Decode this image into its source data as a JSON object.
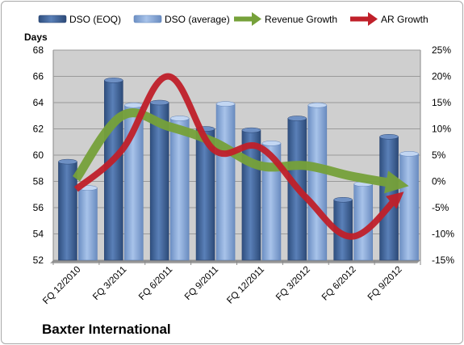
{
  "company_name": "Baxter International",
  "chart_data": {
    "type": "bar",
    "categories": [
      "FQ 12/2010",
      "FQ 3/2011",
      "FQ 6/2011",
      "FQ 9/2011",
      "FQ 12/2011",
      "FQ 3/2012",
      "FQ 6/2012",
      "FQ 9/2012"
    ],
    "y_left_label": "Days",
    "y_left_range": [
      52,
      68
    ],
    "y_left_ticks": [
      52,
      54,
      56,
      58,
      60,
      62,
      64,
      66,
      68
    ],
    "y_right_range": [
      -15,
      25
    ],
    "y_right_ticks": [
      "-15%",
      "-10%",
      "-5%",
      "0%",
      "5%",
      "10%",
      "15%",
      "20%",
      "25%"
    ],
    "series": [
      {
        "name": "DSO (EOQ)",
        "kind": "bar",
        "axis": "left",
        "color": "#4a6fa5",
        "values": [
          59.5,
          65.7,
          64.0,
          62.0,
          61.9,
          62.8,
          56.6,
          61.4
        ]
      },
      {
        "name": "DSO (average)",
        "kind": "bar",
        "axis": "left",
        "color": "#8eaedb",
        "values": [
          57.5,
          63.8,
          62.8,
          63.9,
          60.9,
          63.8,
          57.8,
          60.1
        ]
      },
      {
        "name": "Revenue Growth",
        "kind": "line",
        "axis": "right",
        "color": "#76a13a",
        "values": [
          0.5,
          12.5,
          10.5,
          7.5,
          3.0,
          3.0,
          1.0,
          -0.5
        ]
      },
      {
        "name": "AR Growth",
        "kind": "line",
        "axis": "right",
        "color": "#c0202a",
        "values": [
          -1.5,
          6.0,
          20.0,
          6.0,
          6.5,
          -3.0,
          -10.5,
          -3.0
        ]
      }
    ],
    "grid": true,
    "legend_position": "top"
  }
}
